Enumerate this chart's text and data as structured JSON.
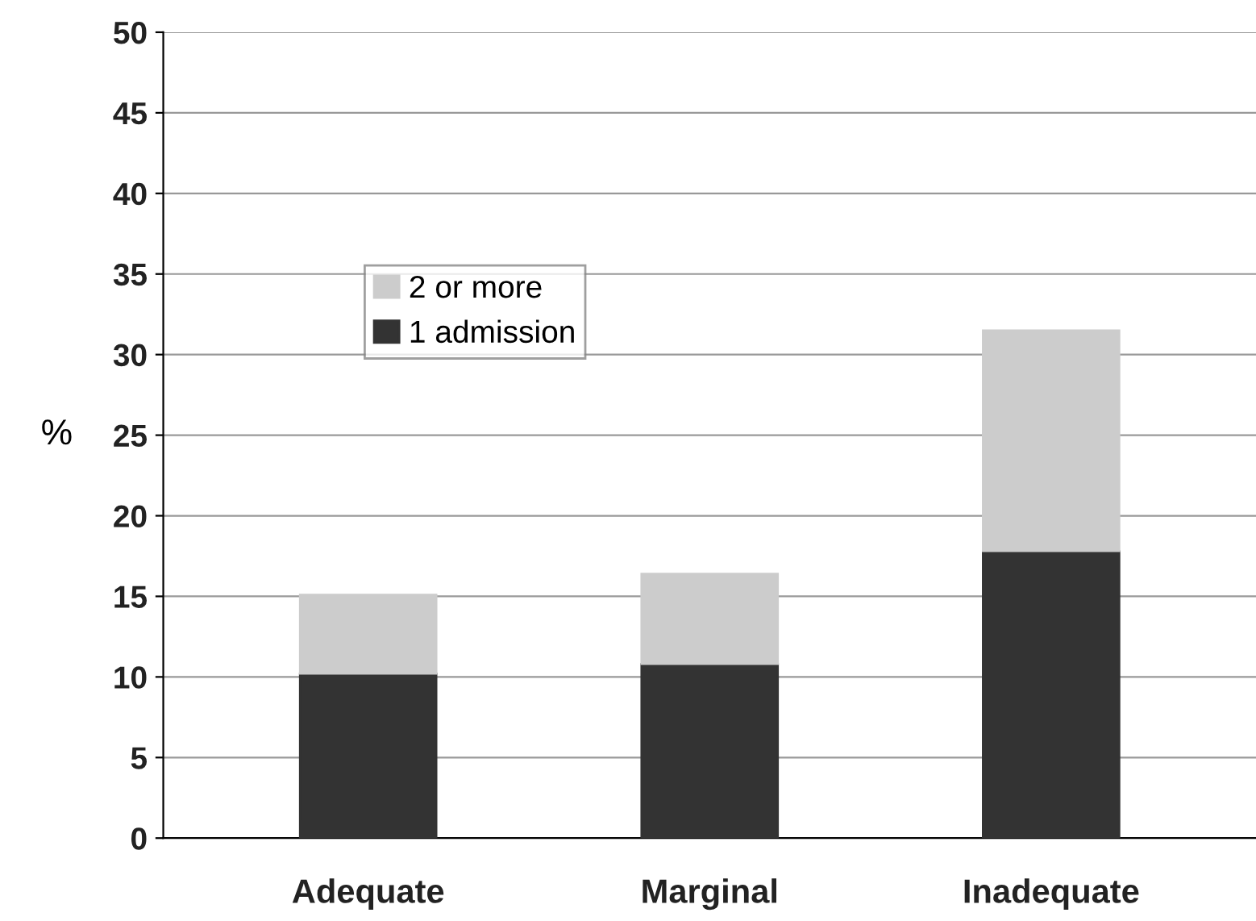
{
  "chart_data": {
    "type": "bar",
    "stacked": true,
    "ylabel": "%",
    "categories": [
      "Adequate",
      "Marginal",
      "Inadequate"
    ],
    "series": [
      {
        "name": "1 admission",
        "color": "#333333",
        "values": [
          10.2,
          10.8,
          17.8
        ]
      },
      {
        "name": "2 or more",
        "color": "#cccccc",
        "values": [
          4.9,
          5.6,
          13.7
        ]
      }
    ],
    "ylim": [
      0,
      50
    ],
    "yticks": [
      0,
      5,
      10,
      15,
      20,
      25,
      30,
      35,
      40,
      45,
      50
    ],
    "grid": "y",
    "legend": "top left"
  }
}
